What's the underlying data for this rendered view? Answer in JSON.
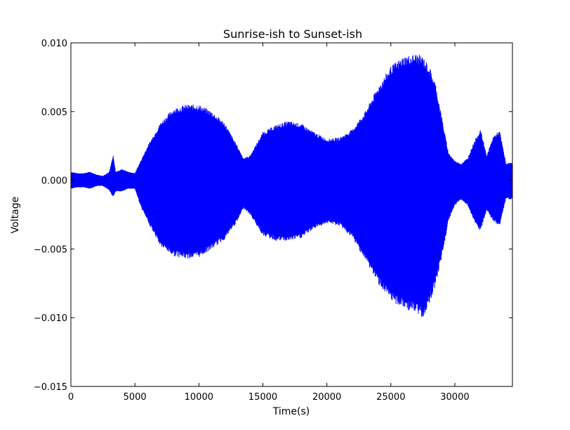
{
  "chart_data": {
    "type": "area",
    "title": "Sunrise-ish to Sunset-ish",
    "xlabel": "Time(s)",
    "ylabel": "Voltage",
    "xlim": [
      0,
      34500
    ],
    "ylim": [
      -0.015,
      0.01
    ],
    "grid": false,
    "legend": "none",
    "x_ticks": [
      0,
      5000,
      10000,
      15000,
      20000,
      25000,
      30000
    ],
    "x_tick_labels": [
      "0",
      "5000",
      "10000",
      "15000",
      "20000",
      "25000",
      "30000"
    ],
    "y_ticks": [
      0.01,
      0.005,
      0.0,
      -0.005,
      -0.01,
      -0.015
    ],
    "y_tick_labels": [
      "0.010",
      "0.005",
      "0.000",
      "−0.005",
      "−0.010",
      "−0.015"
    ],
    "series": [
      {
        "color": "#0000ff",
        "x": [
          0,
          500,
          1000,
          1500,
          2000,
          2500,
          3000,
          3300,
          3500,
          4000,
          4500,
          5000,
          5500,
          6000,
          7000,
          8000,
          9000,
          10000,
          11000,
          12000,
          13000,
          13500,
          14000,
          15000,
          16000,
          17000,
          18000,
          19000,
          20000,
          21000,
          22000,
          23000,
          24000,
          25000,
          26000,
          27000,
          27500,
          28000,
          28500,
          29000,
          29500,
          30000,
          30500,
          31000,
          31500,
          32000,
          32500,
          33000,
          33500,
          34000,
          34500
        ],
        "upper": [
          0.0006,
          0.0005,
          0.0005,
          0.0006,
          0.0004,
          0.0003,
          0.0006,
          0.0018,
          0.0006,
          0.0008,
          0.0006,
          0.0005,
          0.0015,
          0.0025,
          0.0042,
          0.0052,
          0.0055,
          0.0055,
          0.005,
          0.0042,
          0.0025,
          0.0016,
          0.0018,
          0.0035,
          0.004,
          0.0043,
          0.0041,
          0.0035,
          0.003,
          0.0031,
          0.0037,
          0.005,
          0.0068,
          0.0083,
          0.009,
          0.0092,
          0.009,
          0.0083,
          0.007,
          0.0045,
          0.002,
          0.0014,
          0.0012,
          0.0016,
          0.0028,
          0.0037,
          0.0018,
          0.0032,
          0.0036,
          0.0012,
          0.0013
        ],
        "lower": [
          -0.0006,
          -0.0005,
          -0.0005,
          -0.0006,
          -0.0004,
          -0.0004,
          -0.0007,
          -0.0012,
          -0.0008,
          -0.0008,
          -0.0006,
          -0.0006,
          -0.002,
          -0.003,
          -0.0048,
          -0.0055,
          -0.0057,
          -0.0056,
          -0.005,
          -0.0043,
          -0.003,
          -0.002,
          -0.0025,
          -0.004,
          -0.0044,
          -0.0044,
          -0.0042,
          -0.0035,
          -0.0031,
          -0.0033,
          -0.0042,
          -0.0058,
          -0.0075,
          -0.0088,
          -0.0093,
          -0.0097,
          -0.01,
          -0.009,
          -0.0076,
          -0.0055,
          -0.003,
          -0.0018,
          -0.0014,
          -0.0018,
          -0.003,
          -0.0037,
          -0.0022,
          -0.003,
          -0.0033,
          -0.0013,
          -0.0014
        ]
      }
    ]
  }
}
